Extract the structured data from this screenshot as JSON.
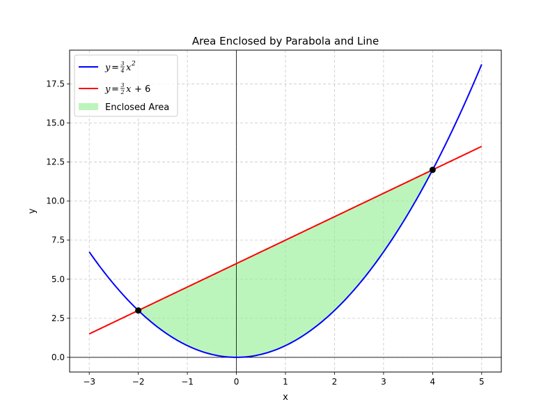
{
  "chart_data": {
    "type": "line",
    "title": "Area Enclosed by Parabola and Line",
    "xlabel": "x",
    "ylabel": "y",
    "xlim": [
      -3.4,
      5.4
    ],
    "ylim": [
      -0.94,
      19.66
    ],
    "xticks": [
      -3,
      -2,
      -1,
      0,
      1,
      2,
      3,
      4,
      5
    ],
    "xtick_labels": [
      "−3",
      "−2",
      "−1",
      "0",
      "1",
      "2",
      "3",
      "4",
      "5"
    ],
    "yticks": [
      0.0,
      2.5,
      5.0,
      7.5,
      10.0,
      12.5,
      15.0,
      17.5
    ],
    "ytick_labels": [
      "0.0",
      "2.5",
      "5.0",
      "7.5",
      "10.0",
      "12.5",
      "15.0",
      "17.5"
    ],
    "grid": true,
    "legend_position": "top-left",
    "series": [
      {
        "name": "y = 3/4 x^2",
        "color": "#0000ff",
        "coef": {
          "a": 0.75,
          "b": 0,
          "c": 0
        },
        "x_range": [
          -3,
          5
        ],
        "x": [
          -3,
          -2.5,
          -2,
          -1.5,
          -1,
          -0.5,
          0,
          0.5,
          1,
          1.5,
          2,
          2.5,
          3,
          3.5,
          4,
          4.5,
          5
        ],
        "y": [
          6.75,
          4.6875,
          3,
          1.6875,
          0.75,
          0.1875,
          0,
          0.1875,
          0.75,
          1.6875,
          3,
          4.6875,
          6.75,
          9.1875,
          12,
          15.1875,
          18.75
        ]
      },
      {
        "name": "y = 3/2 x + 6",
        "color": "#ff0000",
        "coef": {
          "a": 0,
          "b": 1.5,
          "c": 6
        },
        "x_range": [
          -3,
          5
        ],
        "x": [
          -3,
          5
        ],
        "y": [
          1.5,
          13.5
        ]
      }
    ],
    "fill": {
      "name": "Enclosed Area",
      "color": "#90ee90",
      "x_range": [
        -2,
        4
      ]
    },
    "intersections": [
      {
        "x": -2,
        "y": 3
      },
      {
        "x": 4,
        "y": 12
      }
    ]
  },
  "legend": {
    "items": [
      {
        "prefix": "y",
        "eq": "=",
        "num": "3",
        "den": "4",
        "tail": "x",
        "sup": "2",
        "rest": ""
      },
      {
        "prefix": "y",
        "eq": "=",
        "num": "3",
        "den": "2",
        "tail": "x",
        "sup": "",
        "rest": "+ 6"
      }
    ],
    "fill_label": "Enclosed Area"
  }
}
